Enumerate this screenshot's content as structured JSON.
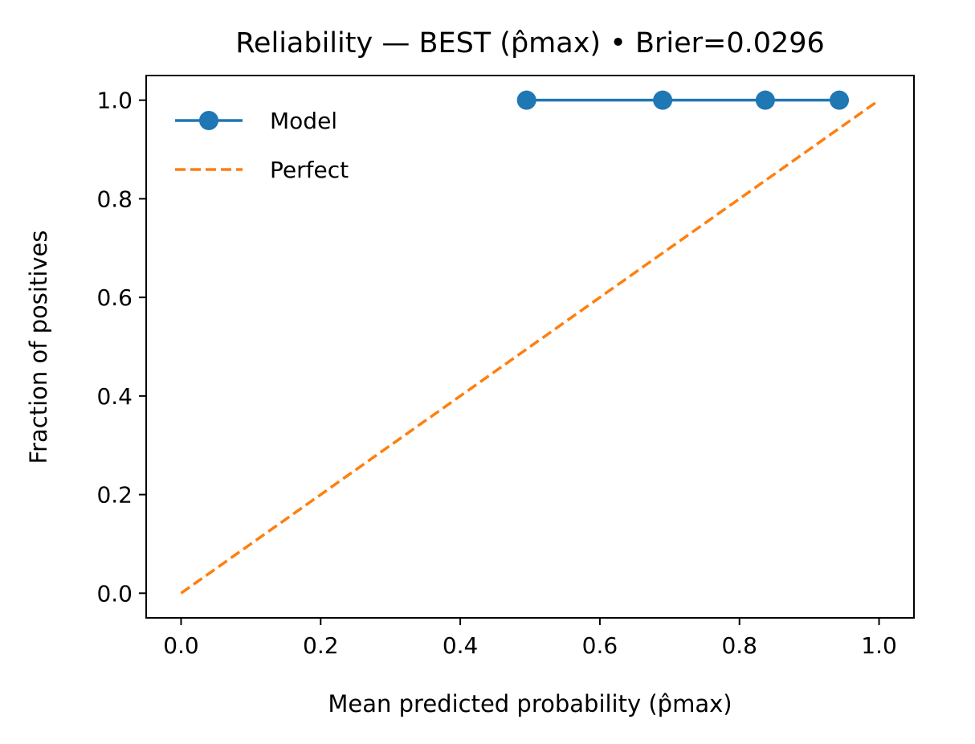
{
  "chart_data": {
    "type": "line",
    "title": "Reliability — BEST (p̂max) • Brier=0.0296",
    "xlabel": "Mean predicted probability (p̂max)",
    "ylabel": "Fraction of positives",
    "xlim": [
      -0.05,
      1.05
    ],
    "ylim": [
      -0.05,
      1.05
    ],
    "xticks": [
      0.0,
      0.2,
      0.4,
      0.6,
      0.8,
      1.0
    ],
    "yticks": [
      0.0,
      0.2,
      0.4,
      0.6,
      0.8,
      1.0
    ],
    "xtick_labels": [
      "0.0",
      "0.2",
      "0.4",
      "0.6",
      "0.8",
      "1.0"
    ],
    "ytick_labels": [
      "0.0",
      "0.2",
      "0.4",
      "0.6",
      "0.8",
      "1.0"
    ],
    "grid": false,
    "legend_position": "upper-left",
    "series": [
      {
        "name": "Model",
        "style": "solid-with-markers",
        "color": "#1f77b4",
        "x": [
          0.495,
          0.69,
          0.837,
          0.943
        ],
        "y": [
          1.0,
          1.0,
          1.0,
          1.0
        ]
      },
      {
        "name": "Perfect",
        "style": "dashed",
        "color": "#ff7f0e",
        "x": [
          0.0,
          1.0
        ],
        "y": [
          0.0,
          1.0
        ]
      }
    ]
  }
}
